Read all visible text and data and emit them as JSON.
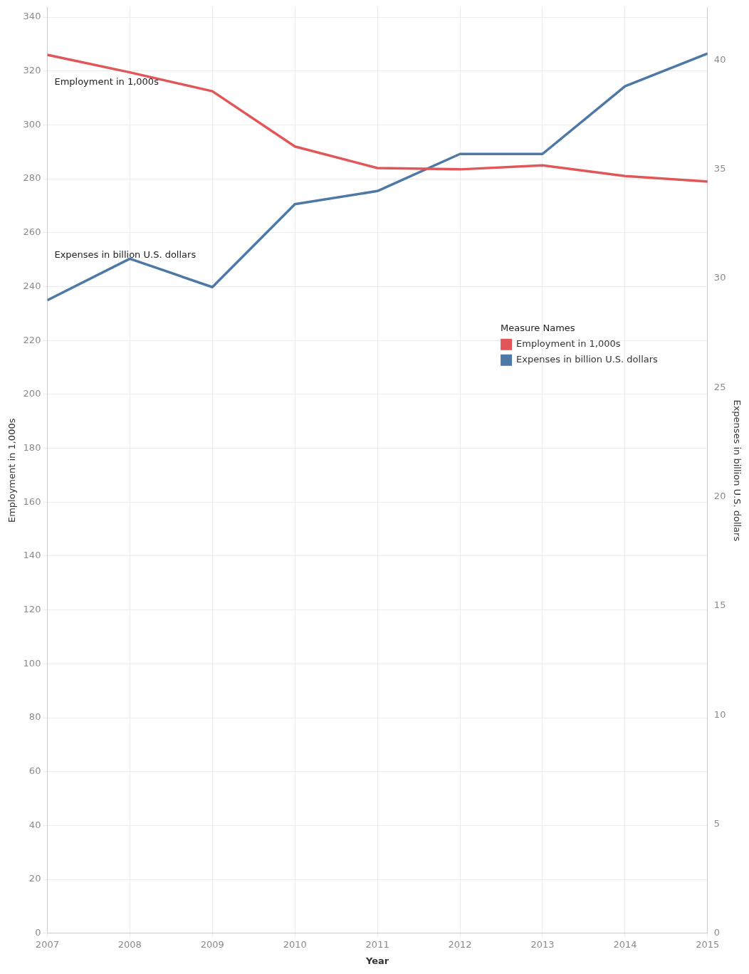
{
  "chart_data": {
    "type": "line",
    "xlabel": "Year",
    "ylabel": "Employment in 1,000s",
    "y2label": "Expenses in billion U.S. dollars",
    "legend_title": "Measure Names",
    "x": [
      2007,
      2008,
      2009,
      2010,
      2011,
      2012,
      2013,
      2014,
      2015
    ],
    "series": [
      {
        "name": "Employment in 1,000s",
        "color": "#e15759",
        "values": [
          326,
          319.5,
          312.5,
          292,
          284,
          283.5,
          285,
          281,
          279
        ]
      },
      {
        "name": "Expenses in billion U.S. dollars",
        "color": "#4e79a7",
        "axis": "y2",
        "values": [
          29,
          30.9,
          29.6,
          33.4,
          34,
          35.7,
          35.7,
          38.8,
          40.3
        ]
      }
    ],
    "xlim": [
      2007,
      2015
    ],
    "xticks": [
      2007,
      2008,
      2009,
      2010,
      2011,
      2012,
      2013,
      2014,
      2015
    ],
    "ylim": [
      0,
      343.5
    ],
    "yticks": [
      0,
      20,
      40,
      60,
      80,
      100,
      120,
      140,
      160,
      180,
      200,
      220,
      240,
      260,
      280,
      300,
      320,
      340
    ],
    "y2lim": [
      0,
      42.4
    ],
    "y2ticks": [
      0,
      5,
      10,
      15,
      20,
      25,
      30,
      35,
      40
    ],
    "grid": true,
    "legend": "top right",
    "marker": "none",
    "line_style": "solid"
  }
}
